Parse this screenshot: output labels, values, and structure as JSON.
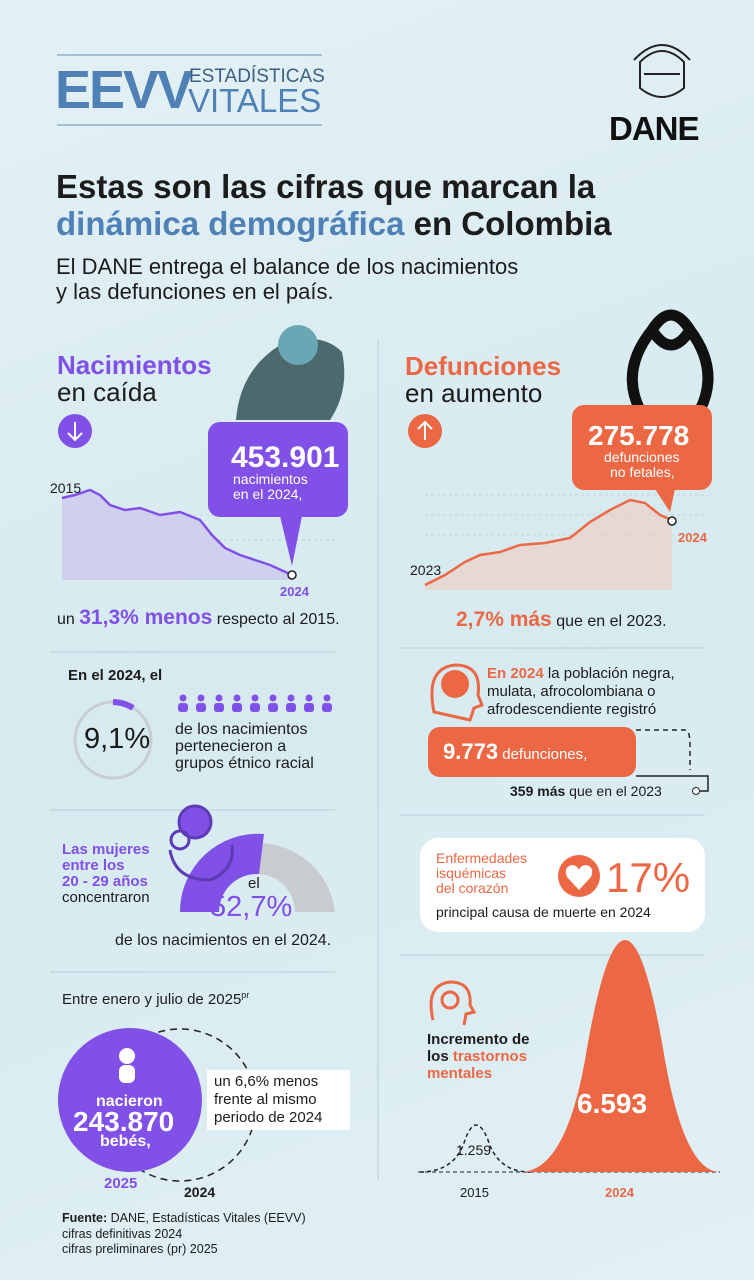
{
  "header": {
    "logo_abbr": "EEVV",
    "logo_line1": "ESTADÍSTICAS",
    "logo_line2": "VITALES",
    "org": "DANE"
  },
  "headline": {
    "line1": "Estas son las cifras que marcan la",
    "highlight": "dinámica demográfica",
    "line2_rest": "en Colombia",
    "subtitle_lines": [
      "El DANE entrega el balance de los nacimientos",
      "y las defunciones en el país."
    ]
  },
  "births": {
    "title": "Nacimientos",
    "subtitle": "en caída",
    "value": "453.901",
    "value_caption": [
      "nacimientos",
      "en el 2024,"
    ],
    "start_label": "2015",
    "end_label": "2024",
    "change_prefix": "un",
    "change_highlight": "31,3% menos",
    "change_suffix": "respecto al 2015."
  },
  "ethnic": {
    "intro": "En el 2024, el",
    "percent": "9,1%",
    "lines": [
      "de los nacimientos",
      "pertenecieron a",
      "grupos étnico racial"
    ]
  },
  "women": {
    "lines": [
      "Las mujeres",
      "entre los",
      "20 - 29 años"
    ],
    "verb": "concentraron",
    "article": "el",
    "percent": "52,7%",
    "caption": "de los nacimientos en el 2024."
  },
  "period": {
    "intro": "Entre enero y julio de 2025",
    "intro_sup": "pr",
    "label_top": "nacieron",
    "value": "243.870",
    "label_bottom": "bebés,",
    "note": [
      "un 6,6% menos",
      "frente al mismo",
      "periodo de 2024"
    ],
    "year_current": "2025",
    "year_previous": "2024"
  },
  "source": {
    "label": "Fuente:",
    "text": "DANE, Estadísticas Vitales (EEVV)",
    "lines": [
      "cifras definitivas 2024",
      "cifras preliminares (pr) 2025"
    ]
  },
  "deaths": {
    "title": "Defunciones",
    "subtitle": "en aumento",
    "value": "275.778",
    "value_caption": [
      "defunciones",
      "no fetales,"
    ],
    "start_label": "2023",
    "end_label": "2024",
    "change_highlight": "2,7% más",
    "change_suffix": "que en el 2023."
  },
  "afro": {
    "intro_highlight": "En 2024",
    "intro_rest": "la población negra,",
    "lines": [
      "mulata, afrocolombiana o",
      "afrodescendiente registró"
    ],
    "value": "9.773",
    "value_label": "defunciones,",
    "diff": "359 más",
    "diff_suffix": "que en el 2023"
  },
  "heart": {
    "lines": [
      "Enfermedades",
      "isquémicas",
      "del corazón"
    ],
    "percent": "17%",
    "caption": "principal causa de muerte en 2024"
  },
  "mental": {
    "lines": [
      "Incremento de"
    ],
    "prefix": "los",
    "highlight": [
      "trastornos",
      "mentales"
    ],
    "value_before": "1.259",
    "value_after": "6.593",
    "year_before": "2015",
    "year_after": "2024"
  }
}
